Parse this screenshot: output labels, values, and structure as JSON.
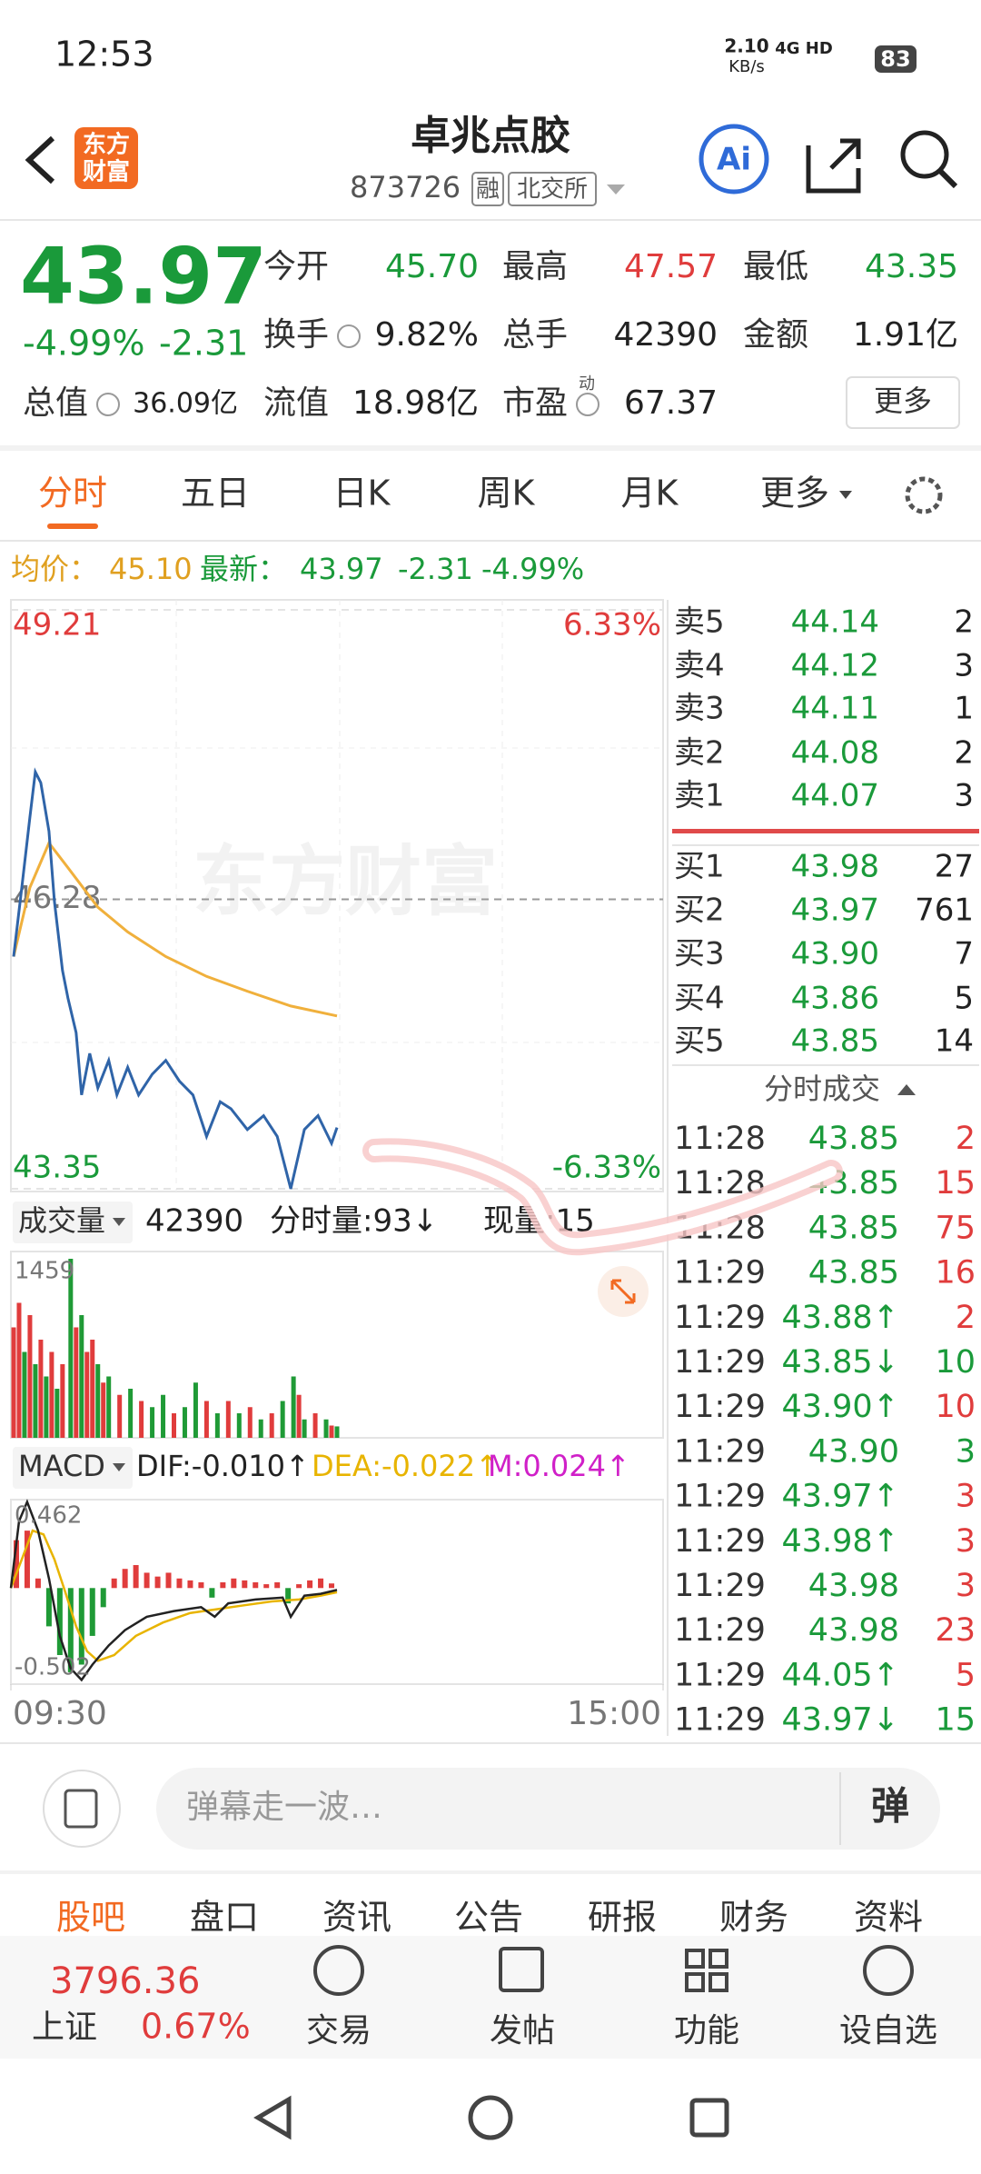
{
  "status_bar": {
    "time": "12:53",
    "speed": "2.10",
    "speed_unit": "KB/s",
    "network": "4G HD",
    "battery": "83"
  },
  "header": {
    "logo": [
      "东方",
      "财富"
    ],
    "title": "卓兆点胶",
    "code": "873726",
    "tags": [
      "融",
      "北交所"
    ],
    "ai": "Ai"
  },
  "quote": {
    "price": "43.97",
    "change_pct": "-4.99%",
    "change": "-2.31",
    "more": "更多",
    "fields": [
      {
        "label": "今开",
        "value": "45.70",
        "color": "#1a9a3a"
      },
      {
        "label": "最高",
        "value": "47.57",
        "color": "#e03c3c"
      },
      {
        "label": "最低",
        "value": "43.35",
        "color": "#1a9a3a"
      },
      {
        "label": "换手",
        "value": "9.82%",
        "color": "#222222"
      },
      {
        "label": "总手",
        "value": "42390",
        "color": "#222222"
      },
      {
        "label": "金额",
        "value": "1.91亿",
        "color": "#222222"
      },
      {
        "label": "总值",
        "value": "36.09亿",
        "color": "#222222"
      },
      {
        "label": "流值",
        "value": "18.98亿",
        "color": "#222222"
      },
      {
        "label": "市盈",
        "sup": "动",
        "value": "67.37",
        "color": "#222222"
      }
    ]
  },
  "tabs": [
    "分时",
    "五日",
    "日K",
    "周K",
    "月K",
    "更多"
  ],
  "info_line": {
    "avg_label": "均价：",
    "avg": "45.10",
    "latest_label": "最新：",
    "latest": "43.97",
    "change": "-2.31",
    "change_pct": "-4.99%"
  },
  "watermark": "东方财富",
  "intraday_chart": {
    "type": "line",
    "xlim": [
      0,
      240
    ],
    "ylim": [
      43.35,
      49.21
    ],
    "yticks": [
      49.21,
      46.28,
      43.35
    ],
    "right_labels": [
      "6.33%",
      "-6.33%"
    ],
    "xticks": [
      {
        "value": 0,
        "label": "09:30"
      },
      {
        "value": 240,
        "label": "15:00"
      }
    ],
    "price": {
      "color": "#2f64a8",
      "x": [
        1,
        4,
        7,
        9,
        11,
        14,
        16,
        19,
        21,
        24,
        26,
        29,
        32,
        36,
        39,
        43,
        47,
        52,
        57,
        62,
        67,
        72,
        77,
        81,
        87,
        93,
        98,
        103,
        108,
        113,
        118,
        120
      ],
      "values": [
        45.7,
        46.4,
        47.11,
        47.57,
        47.46,
        46.97,
        46.26,
        45.56,
        45.28,
        44.93,
        44.3,
        44.72,
        44.37,
        44.65,
        44.3,
        44.58,
        44.3,
        44.51,
        44.65,
        44.44,
        44.3,
        43.88,
        44.23,
        44.16,
        43.95,
        44.09,
        43.88,
        43.35,
        43.95,
        44.09,
        43.81,
        43.97
      ]
    },
    "average": {
      "color": "#f0b03c",
      "x": [
        1,
        7,
        14,
        21,
        32,
        43,
        57,
        72,
        87,
        103,
        120
      ],
      "values": [
        45.7,
        46.4,
        46.85,
        46.6,
        46.2,
        45.95,
        45.7,
        45.5,
        45.35,
        45.2,
        45.1
      ]
    }
  },
  "volume_panel": {
    "header": {
      "label": "成交量",
      "total": "42390",
      "minute": "分时量:93↓",
      "current": "现量:15"
    },
    "ylim": [
      0,
      1459
    ],
    "yticks": [
      1459
    ],
    "x": [
      1,
      3,
      5,
      7,
      9,
      11,
      13,
      15,
      17,
      19,
      22,
      24,
      26,
      28,
      30,
      32,
      34,
      36,
      40,
      44,
      48,
      52,
      56,
      60,
      64,
      68,
      72,
      76,
      80,
      84,
      88,
      92,
      96,
      100,
      104,
      106,
      108,
      112,
      116,
      118,
      120
    ],
    "values": [
      900,
      1100,
      700,
      1000,
      600,
      800,
      500,
      700,
      400,
      600,
      1459,
      900,
      1000,
      700,
      800,
      600,
      450,
      500,
      350,
      400,
      300,
      250,
      350,
      200,
      250,
      450,
      300,
      200,
      300,
      200,
      250,
      150,
      200,
      300,
      500,
      350,
      150,
      200,
      150,
      100,
      93
    ],
    "colors": [
      "#e03c3c",
      "#e03c3c",
      "#1f9a36",
      "#e03c3c",
      "#1f9a36",
      "#e03c3c",
      "#1f9a36",
      "#e03c3c",
      "#1f9a36",
      "#e03c3c",
      "#1f9a36",
      "#e03c3c",
      "#1f9a36",
      "#e03c3c",
      "#e03c3c",
      "#1f9a36",
      "#e03c3c",
      "#1f9a36",
      "#e03c3c",
      "#1f9a36",
      "#e03c3c",
      "#1f9a36",
      "#1f9a36",
      "#e03c3c",
      "#1f9a36",
      "#1f9a36",
      "#e03c3c",
      "#1f9a36",
      "#e03c3c",
      "#1f9a36",
      "#e03c3c",
      "#1f9a36",
      "#e03c3c",
      "#1f9a36",
      "#1f9a36",
      "#e03c3c",
      "#1f9a36",
      "#e03c3c",
      "#1f9a36",
      "#e03c3c",
      "#1f9a36"
    ]
  },
  "macd_panel": {
    "header": {
      "label": "MACD",
      "dif": "DIF:-0.010↑",
      "dea": "DEA:-0.022↑",
      "m": "M:0.024↑"
    },
    "ylim": [
      -0.502,
      0.462
    ],
    "yticks": [
      0.462,
      -0.502
    ],
    "up_color": "#e03c3c",
    "down_color": "#1f9a36",
    "dif": {
      "color": "#222222",
      "x": [
        0,
        3,
        6,
        10,
        14,
        18,
        22,
        26,
        30,
        36,
        42,
        50,
        60,
        70,
        75,
        80,
        90,
        100,
        103,
        108,
        114,
        120
      ],
      "values": [
        0,
        0.35,
        0.45,
        0.3,
        0.05,
        -0.25,
        -0.42,
        -0.48,
        -0.4,
        -0.3,
        -0.22,
        -0.15,
        -0.12,
        -0.1,
        -0.15,
        -0.08,
        -0.06,
        -0.05,
        -0.15,
        -0.04,
        -0.03,
        -0.01
      ]
    },
    "dea": {
      "color": "#e8b400",
      "x": [
        0,
        4,
        8,
        12,
        16,
        20,
        24,
        28,
        32,
        38,
        46,
        56,
        66,
        76,
        86,
        96,
        106,
        114,
        120
      ],
      "values": [
        0,
        0.15,
        0.3,
        0.28,
        0.15,
        -0.02,
        -0.2,
        -0.33,
        -0.38,
        -0.35,
        -0.25,
        -0.18,
        -0.13,
        -0.11,
        -0.09,
        -0.07,
        -0.06,
        -0.04,
        -0.022
      ]
    },
    "m": {
      "x": [
        2,
        6,
        10,
        14,
        18,
        22,
        26,
        30,
        34,
        38,
        42,
        46,
        50,
        54,
        58,
        62,
        66,
        70,
        74,
        78,
        82,
        86,
        90,
        94,
        98,
        102,
        106,
        110,
        114,
        118
      ],
      "values": [
        0.25,
        0.3,
        0.05,
        -0.2,
        -0.35,
        -0.44,
        -0.4,
        -0.25,
        -0.1,
        0.05,
        0.1,
        0.12,
        0.08,
        0.06,
        0.08,
        0.05,
        0.04,
        0.03,
        -0.05,
        0.03,
        0.05,
        0.04,
        0.03,
        0.02,
        0.03,
        -0.08,
        0.02,
        0.04,
        0.05,
        0.024
      ]
    }
  },
  "order_book": {
    "asks": [
      {
        "label": "卖5",
        "price": "44.14",
        "volume": "2"
      },
      {
        "label": "卖4",
        "price": "44.12",
        "volume": "3"
      },
      {
        "label": "卖3",
        "price": "44.11",
        "volume": "1"
      },
      {
        "label": "卖2",
        "price": "44.08",
        "volume": "2"
      },
      {
        "label": "卖1",
        "price": "44.07",
        "volume": "3"
      }
    ],
    "bids": [
      {
        "label": "买1",
        "price": "43.98",
        "volume": "27"
      },
      {
        "label": "买2",
        "price": "43.97",
        "volume": "761"
      },
      {
        "label": "买3",
        "price": "43.90",
        "volume": "7"
      },
      {
        "label": "买4",
        "price": "43.86",
        "volume": "5"
      },
      {
        "label": "买5",
        "price": "43.85",
        "volume": "14"
      }
    ]
  },
  "trades": {
    "title": "分时成交",
    "rows": [
      {
        "time": "11:28",
        "price": "43.85",
        "volume": "2",
        "color": "#e03c3c"
      },
      {
        "time": "11:28",
        "price": "43.85",
        "volume": "15",
        "color": "#e03c3c"
      },
      {
        "time": "11:28",
        "price": "43.85",
        "volume": "75",
        "color": "#e03c3c"
      },
      {
        "time": "11:29",
        "price": "43.85",
        "volume": "16",
        "color": "#e03c3c"
      },
      {
        "time": "11:29",
        "price": "43.88↑",
        "volume": "2",
        "color": "#e03c3c"
      },
      {
        "time": "11:29",
        "price": "43.85↓",
        "volume": "10",
        "color": "#1a9a3a"
      },
      {
        "time": "11:29",
        "price": "43.90↑",
        "volume": "10",
        "color": "#e03c3c"
      },
      {
        "time": "11:29",
        "price": "43.90",
        "volume": "3",
        "color": "#1a9a3a"
      },
      {
        "time": "11:29",
        "price": "43.97↑",
        "volume": "3",
        "color": "#e03c3c"
      },
      {
        "time": "11:29",
        "price": "43.98↑",
        "volume": "3",
        "color": "#e03c3c"
      },
      {
        "time": "11:29",
        "price": "43.98",
        "volume": "3",
        "color": "#e03c3c"
      },
      {
        "time": "11:29",
        "price": "43.98",
        "volume": "23",
        "color": "#e03c3c"
      },
      {
        "time": "11:29",
        "price": "44.05↑",
        "volume": "5",
        "color": "#e03c3c"
      },
      {
        "time": "11:29",
        "price": "43.97↓",
        "volume": "15",
        "color": "#1a9a3a"
      }
    ]
  },
  "comment_bar": {
    "placeholder": "弹幕走一波…",
    "button": "弹"
  },
  "section_tabs": [
    "股吧",
    "盘口",
    "资讯",
    "公告",
    "研报",
    "财务",
    "资料"
  ],
  "bottom_nav": {
    "index": {
      "value": "3796.36",
      "name": "上证",
      "change": "0.67%"
    },
    "items": [
      "交易",
      "发帖",
      "功能",
      "设自选"
    ]
  }
}
